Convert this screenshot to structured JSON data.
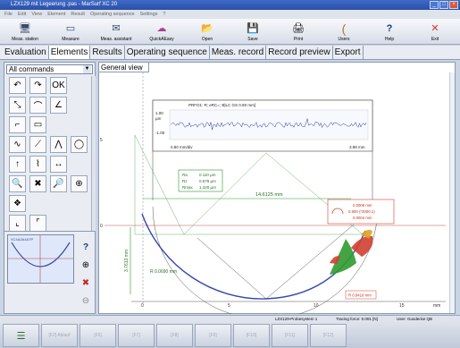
{
  "window": {
    "title": "LZX129 mit Legeerung .pas - MarSurf XC 20",
    "buttons": [
      "_",
      "□",
      "×"
    ]
  },
  "menu": [
    "File",
    "Edit",
    "View",
    "Element",
    "Result",
    "Operating sequence",
    "Settings",
    "?"
  ],
  "toolbar": [
    {
      "label": "Meas. station",
      "icon": "meas-station-icon",
      "glyph": "🖥"
    },
    {
      "label": "Measure",
      "icon": "measure-icon",
      "glyph": "▭"
    },
    {
      "label": "Meas. assistant",
      "icon": "meas-assistant-icon",
      "glyph": "✉"
    },
    {
      "label": "QuickAEasy",
      "icon": "quick-easy-icon",
      "glyph": "☁"
    },
    {
      "label": "Open",
      "icon": "open-icon",
      "glyph": "📂"
    },
    {
      "label": "Save",
      "icon": "save-icon",
      "glyph": "💾"
    },
    {
      "label": "Print",
      "icon": "print-icon",
      "glyph": "🖨"
    },
    {
      "label": "Users",
      "icon": "users-icon",
      "glyph": "("
    },
    {
      "label": "Help",
      "icon": "help-icon",
      "glyph": "?"
    },
    {
      "label": "Exit",
      "icon": "exit-icon",
      "glyph": "✕"
    }
  ],
  "tabs": [
    "Evaluation",
    "Elements",
    "Results",
    "Operating sequence",
    "Meas. record",
    "Record preview",
    "Export"
  ],
  "active_tab": "Elements",
  "commands": {
    "selected": "All commands"
  },
  "icon_grid": [
    {
      "name": "undo-icon",
      "glyph": "↶"
    },
    {
      "name": "redo-icon",
      "glyph": "↷"
    },
    {
      "name": "ok-icon",
      "glyph": "OK"
    },
    {
      "name": "blank-1",
      "glyph": ""
    },
    {
      "name": "line-select-icon",
      "glyph": "⤡"
    },
    {
      "name": "arc-icon",
      "glyph": "⌒"
    },
    {
      "name": "angle-icon",
      "glyph": "∠"
    },
    {
      "name": "blank-2",
      "glyph": ""
    },
    {
      "name": "step-icon",
      "glyph": "⌐"
    },
    {
      "name": "gap-icon",
      "glyph": "▭"
    },
    {
      "name": "blank-3",
      "glyph": ""
    },
    {
      "name": "blank-4",
      "glyph": ""
    },
    {
      "name": "trace-icon",
      "glyph": "∿"
    },
    {
      "name": "slope-icon",
      "glyph": "⟋"
    },
    {
      "name": "peak-icon",
      "glyph": "⋀"
    },
    {
      "name": "circle-fit-icon",
      "glyph": "◯"
    },
    {
      "name": "arrow-up-icon",
      "glyph": "↑"
    },
    {
      "name": "contour-icon",
      "glyph": "⌇"
    },
    {
      "name": "distance-icon",
      "glyph": "↔"
    },
    {
      "name": "blank-5",
      "glyph": ""
    },
    {
      "name": "zoom-icon",
      "glyph": "🔍"
    },
    {
      "name": "delete-icon",
      "glyph": "✖"
    },
    {
      "name": "zoom-out-icon",
      "glyph": "🔎"
    },
    {
      "name": "zoom-fit-icon",
      "glyph": "⊕"
    },
    {
      "name": "palette-icon",
      "glyph": "❖"
    },
    {
      "name": "blank-6",
      "glyph": ""
    },
    {
      "name": "blank-7",
      "glyph": ""
    },
    {
      "name": "blank-8",
      "glyph": ""
    },
    {
      "name": "measure-line-icon",
      "glyph": "⌞"
    },
    {
      "name": "measure-box-icon",
      "glyph": "⌜"
    },
    {
      "name": "blank-9",
      "glyph": ""
    },
    {
      "name": "blank-10",
      "glyph": ""
    }
  ],
  "subtabs": [
    "Icons",
    "Tree",
    "Preferences"
  ],
  "preview": {
    "label": "XC4A2A4A7P"
  },
  "view": {
    "tab": "General view",
    "inset": {
      "title": "PRFO1: R; eRC=; B|LC GS 0.80 mm]",
      "y_top": "1.00",
      "y_unit": "µm",
      "y_bottom": "-1.00",
      "x_left": "0.80 mm/div",
      "x_right": "3.98 mm"
    },
    "stats": [
      {
        "param": "Ra",
        "value": "0.110 µm"
      },
      {
        "param": "Rz",
        "value": "0.678 µm"
      },
      {
        "param": "Rmax",
        "value": "1.320 µm"
      }
    ],
    "dimension_horizontal": "14.6125 mm",
    "dimension_vertical": "3.7613 mm",
    "dimension_small": "R 0.0690 mm",
    "radius_box": [
      "0.0006 mm",
      "0.900 (*3000.1)",
      "0.0004 mm"
    ],
    "dimension_bottom_right": "R 0.8418 mm",
    "x_axis_ticks": [
      "0",
      "5",
      "10",
      "15"
    ],
    "x_axis_unit": "mm",
    "y_axis_ticks": [
      "0",
      "5"
    ]
  },
  "status": {
    "instrument": "LZX129-Probesystem 1",
    "force": "Tracing force: 0.001 [N]",
    "user": "User: Gusdecke QB"
  },
  "fkeys": [
    "",
    "[F2] Ablauf",
    "[F6]",
    "[F7]",
    "[F8]",
    "[F9]",
    "[F10]",
    "[F11]",
    "[F12]"
  ]
}
